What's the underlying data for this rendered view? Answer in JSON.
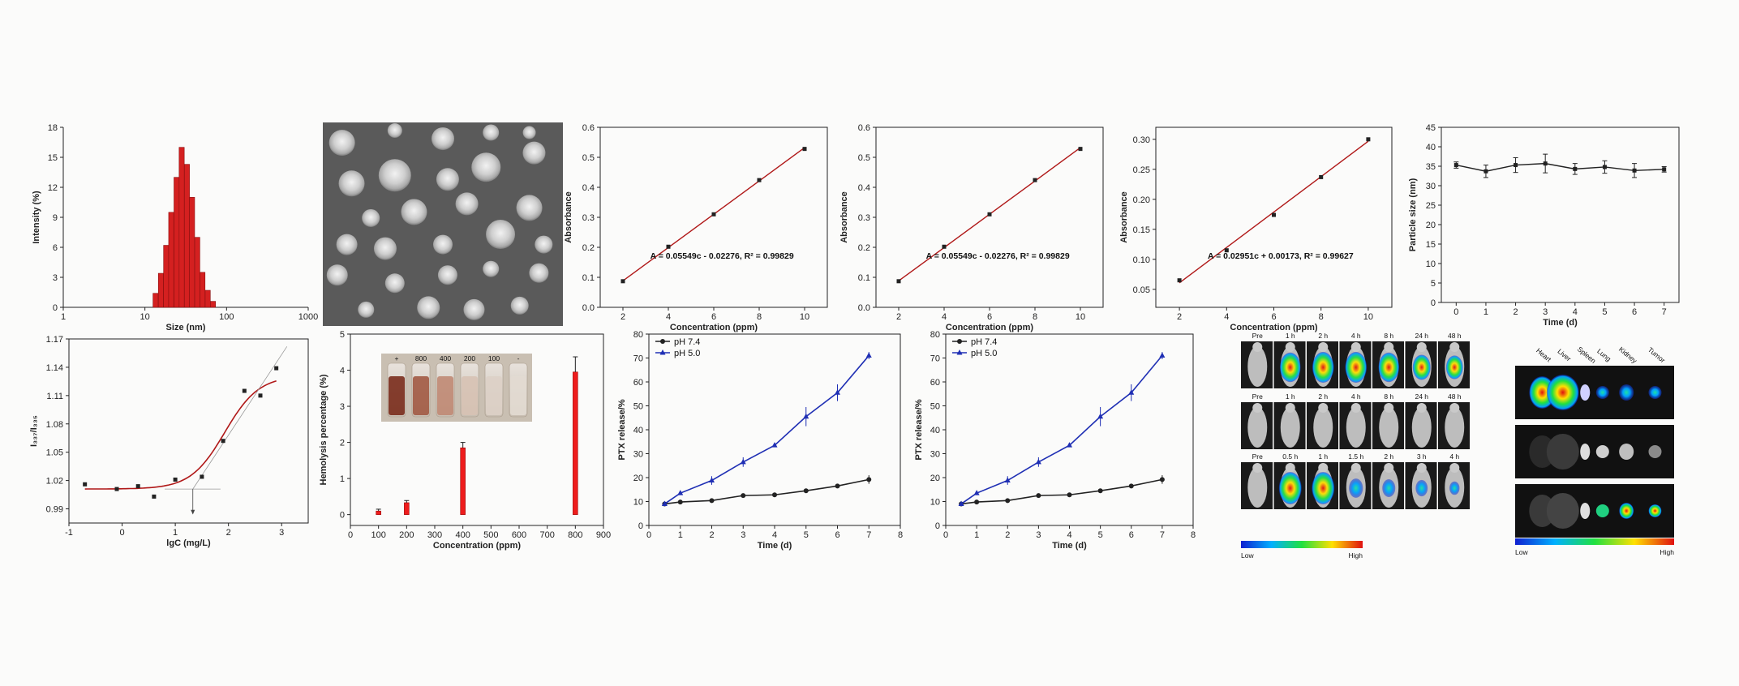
{
  "chart_data": [
    {
      "id": "dls",
      "type": "bar",
      "xlabel": "Size (nm)",
      "ylabel": "Intensity (%)",
      "xscale": "log",
      "xlim": [
        1,
        1000
      ],
      "ylim": [
        0,
        18
      ],
      "xticks": [
        "1",
        "10",
        "100",
        "1000"
      ],
      "yticks": [
        "0",
        "3",
        "6",
        "9",
        "12",
        "15",
        "18"
      ],
      "x": [
        13.5,
        15.7,
        18.2,
        21.0,
        24.4,
        28.2,
        32.7,
        37.8,
        43.8,
        50.7,
        58.8,
        68.1
      ],
      "values": [
        1.4,
        3.4,
        6.2,
        9.5,
        13.0,
        16.0,
        14.3,
        11.0,
        7.0,
        3.5,
        1.7,
        0.6
      ],
      "color": "#d42020"
    },
    {
      "id": "tem",
      "type": "image"
    },
    {
      "id": "std1",
      "type": "scatter",
      "xlabel": "Concentration (ppm)",
      "ylabel": "Absorbance",
      "xlim": [
        1,
        11
      ],
      "ylim": [
        0,
        0.6
      ],
      "xticks": [
        "2",
        "4",
        "6",
        "8",
        "10"
      ],
      "yticks": [
        "0.0",
        "0.1",
        "0.2",
        "0.3",
        "0.4",
        "0.5",
        "0.6"
      ],
      "x": [
        2,
        4,
        6,
        8,
        10
      ],
      "y": [
        0.087,
        0.202,
        0.31,
        0.424,
        0.528
      ],
      "fit": [
        0.05549,
        -0.02276
      ],
      "annotation": "A = 0.05549c - 0.02276, R² = 0.99829"
    },
    {
      "id": "std2",
      "type": "scatter",
      "xlabel": "Concentration (ppm)",
      "ylabel": "Absorbance",
      "xlim": [
        1,
        11
      ],
      "ylim": [
        0,
        0.6
      ],
      "xticks": [
        "2",
        "4",
        "6",
        "8",
        "10"
      ],
      "yticks": [
        "0.0",
        "0.1",
        "0.2",
        "0.3",
        "0.4",
        "0.5",
        "0.6"
      ],
      "x": [
        2,
        4,
        6,
        8,
        10
      ],
      "y": [
        0.087,
        0.202,
        0.31,
        0.424,
        0.528
      ],
      "fit": [
        0.05549,
        -0.02276
      ],
      "annotation": "A = 0.05549c - 0.02276, R² = 0.99829"
    },
    {
      "id": "std3",
      "type": "scatter",
      "xlabel": "Concentration (ppm)",
      "ylabel": "Absorbance",
      "xlim": [
        1,
        11
      ],
      "ylim": [
        0.02,
        0.32
      ],
      "xticks": [
        "2",
        "4",
        "6",
        "8",
        "10"
      ],
      "yticks": [
        "0.05",
        "0.10",
        "0.15",
        "0.20",
        "0.25",
        "0.30"
      ],
      "x": [
        2,
        4,
        6,
        8,
        10
      ],
      "y": [
        0.065,
        0.115,
        0.174,
        0.237,
        0.3
      ],
      "fit": [
        0.02951,
        0.00173
      ],
      "annotation": "A = 0.02951c + 0.00173, R² = 0.99627"
    },
    {
      "id": "stability",
      "type": "line",
      "xlabel": "Time (d)",
      "ylabel": "Particle size (nm)",
      "xlim": [
        -0.5,
        7.5
      ],
      "ylim": [
        0,
        45
      ],
      "xticks": [
        "0",
        "1",
        "2",
        "3",
        "4",
        "5",
        "6",
        "7"
      ],
      "yticks": [
        "0",
        "5",
        "10",
        "15",
        "20",
        "25",
        "30",
        "35",
        "40",
        "45"
      ],
      "x": [
        0,
        1,
        2,
        3,
        4,
        5,
        6,
        7
      ],
      "y": [
        35.3,
        33.7,
        35.3,
        35.7,
        34.3,
        34.8,
        33.9,
        34.2
      ],
      "err": [
        0.8,
        1.6,
        1.9,
        2.4,
        1.4,
        1.6,
        1.8,
        0.7
      ]
    },
    {
      "id": "cmc",
      "type": "scatter",
      "xlabel": "lgC (mg/L)",
      "ylabel": "I₃₃₇/I₃₃₅",
      "xlim": [
        -1,
        3.5
      ],
      "ylim": [
        0.975,
        1.17
      ],
      "xticks": [
        "-1",
        "0",
        "1",
        "2",
        "3"
      ],
      "yticks": [
        "0.99",
        "1.02",
        "1.05",
        "1.08",
        "1.11",
        "1.14",
        "1.17"
      ],
      "x": [
        -0.7,
        -0.1,
        0.3,
        0.6,
        1.0,
        1.5,
        1.9,
        2.3,
        2.6,
        2.9
      ],
      "y": [
        1.016,
        1.011,
        1.014,
        1.003,
        1.021,
        1.024,
        1.062,
        1.115,
        1.11,
        1.139
      ],
      "curve": {
        "bottom": 1.011,
        "top": 1.131,
        "x0": 1.93,
        "slope": 0.32
      },
      "cmc_x": 1.33
    },
    {
      "id": "hemolysis",
      "type": "bar",
      "xlabel": "Concentration (ppm)",
      "ylabel": "Hemolysis percentage (%)",
      "xlim": [
        0,
        900
      ],
      "ylim": [
        -0.3,
        5
      ],
      "xticks": [
        "0",
        "100",
        "200",
        "300",
        "400",
        "500",
        "600",
        "700",
        "800",
        "900"
      ],
      "yticks": [
        "0",
        "1",
        "2",
        "3",
        "4",
        "5"
      ],
      "x": [
        100,
        200,
        400,
        800
      ],
      "values": [
        0.1,
        0.33,
        1.85,
        3.95
      ],
      "err": [
        0.05,
        0.06,
        0.15,
        0.42
      ],
      "color": "#ee1c1c",
      "inset_labels": [
        "+",
        "800",
        "400",
        "200",
        "100",
        "-"
      ]
    },
    {
      "id": "release1",
      "type": "line",
      "xlabel": "Time (d)",
      "ylabel": "PTX release/%",
      "xlim": [
        0,
        8
      ],
      "ylim": [
        0,
        80
      ],
      "xticks": [
        "0",
        "1",
        "2",
        "3",
        "4",
        "5",
        "6",
        "7",
        "8"
      ],
      "yticks": [
        "0",
        "10",
        "20",
        "30",
        "40",
        "50",
        "60",
        "70",
        "80"
      ],
      "x": [
        0.5,
        1,
        2,
        3,
        4,
        5,
        6,
        7
      ],
      "series": [
        {
          "name": "pH 7.4",
          "color": "#222222",
          "values": [
            9,
            9.8,
            10.4,
            12.5,
            12.8,
            14.5,
            16.5,
            19.2
          ],
          "err": [
            0.5,
            0.5,
            0.6,
            0.8,
            0.7,
            0.8,
            0.9,
            1.8
          ]
        },
        {
          "name": "pH 5.0",
          "color": "#1f2fb4",
          "values": [
            9,
            13.5,
            18.8,
            26.5,
            33.5,
            45.5,
            55.5,
            71.0
          ],
          "err": [
            0.5,
            0.8,
            1.8,
            2.0,
            0.8,
            4.0,
            3.5,
            1.5
          ]
        }
      ],
      "legend": "top-left"
    },
    {
      "id": "release2",
      "type": "line",
      "xlabel": "Time (d)",
      "ylabel": "PTX release/%",
      "xlim": [
        0,
        8
      ],
      "ylim": [
        0,
        80
      ],
      "xticks": [
        "0",
        "1",
        "2",
        "3",
        "4",
        "5",
        "6",
        "7",
        "8"
      ],
      "yticks": [
        "0",
        "10",
        "20",
        "30",
        "40",
        "50",
        "60",
        "70",
        "80"
      ],
      "x": [
        0.5,
        1,
        2,
        3,
        4,
        5,
        6,
        7
      ],
      "series": [
        {
          "name": "pH 7.4",
          "color": "#222222",
          "values": [
            9,
            9.8,
            10.4,
            12.5,
            12.8,
            14.5,
            16.5,
            19.2
          ],
          "err": [
            0.5,
            0.5,
            0.6,
            0.8,
            0.7,
            0.8,
            0.9,
            1.8
          ]
        },
        {
          "name": "pH 5.0",
          "color": "#1f2fb4",
          "values": [
            9,
            13.5,
            18.8,
            26.5,
            33.5,
            45.5,
            55.5,
            71.0
          ],
          "err": [
            0.5,
            0.8,
            1.8,
            2.0,
            0.8,
            4.0,
            3.5,
            1.5
          ]
        }
      ],
      "legend": "top-left"
    },
    {
      "id": "invivo",
      "type": "image-grid",
      "row_headers": [
        [
          "Pre",
          "1 h",
          "2 h",
          "4 h",
          "8 h",
          "24 h",
          "48 h"
        ],
        [
          "Pre",
          "1 h",
          "2 h",
          "4 h",
          "8 h",
          "24 h",
          "48 h"
        ],
        [
          "Pre",
          "0.5 h",
          "1 h",
          "1.5 h",
          "2 h",
          "3 h",
          "4 h"
        ]
      ],
      "colorbar": [
        "Low",
        "High"
      ]
    },
    {
      "id": "exvivo",
      "type": "image-grid",
      "organs": [
        "Heart",
        "Liver",
        "Spleen",
        "Lung",
        "Kidney",
        "Tumor"
      ],
      "colorbar": [
        "Low",
        "High"
      ]
    }
  ]
}
